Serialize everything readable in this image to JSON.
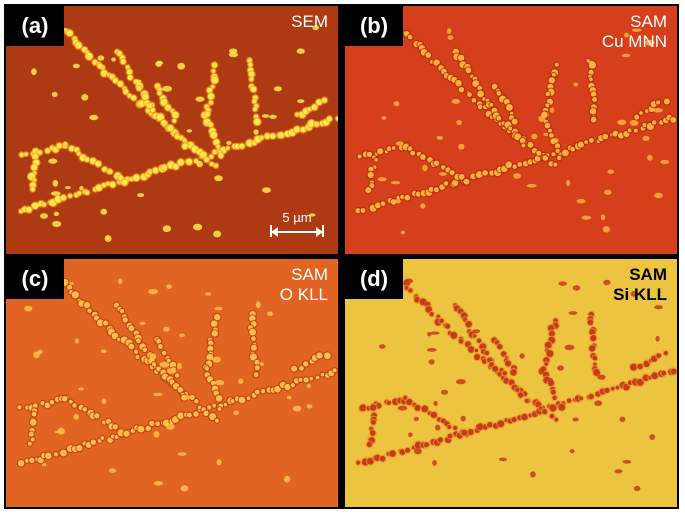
{
  "panels": [
    {
      "id": "a",
      "tag": "(a)",
      "label": [
        "SEM"
      ],
      "bg": "#c64216",
      "dot": "#ffe94a",
      "halo": "#ff9a22"
    },
    {
      "id": "b",
      "tag": "(b)",
      "label": [
        "SAM",
        "Cu MNN"
      ],
      "bg": "#e2431e",
      "dot": "#ffb23a",
      "halo": "#a82a10"
    },
    {
      "id": "c",
      "tag": "(c)",
      "label": [
        "SAM",
        "O KLL"
      ],
      "bg": "#ee6a24",
      "dot": "#ffc04a",
      "halo": "#b73a14"
    },
    {
      "id": "d",
      "tag": "(d)",
      "label": [
        "SAM",
        "Si KLL"
      ],
      "bg": "#ecc23a",
      "dot": "#c83a1c",
      "halo": "#e59a2c"
    }
  ],
  "scalebar": {
    "label": "5 µm"
  }
}
